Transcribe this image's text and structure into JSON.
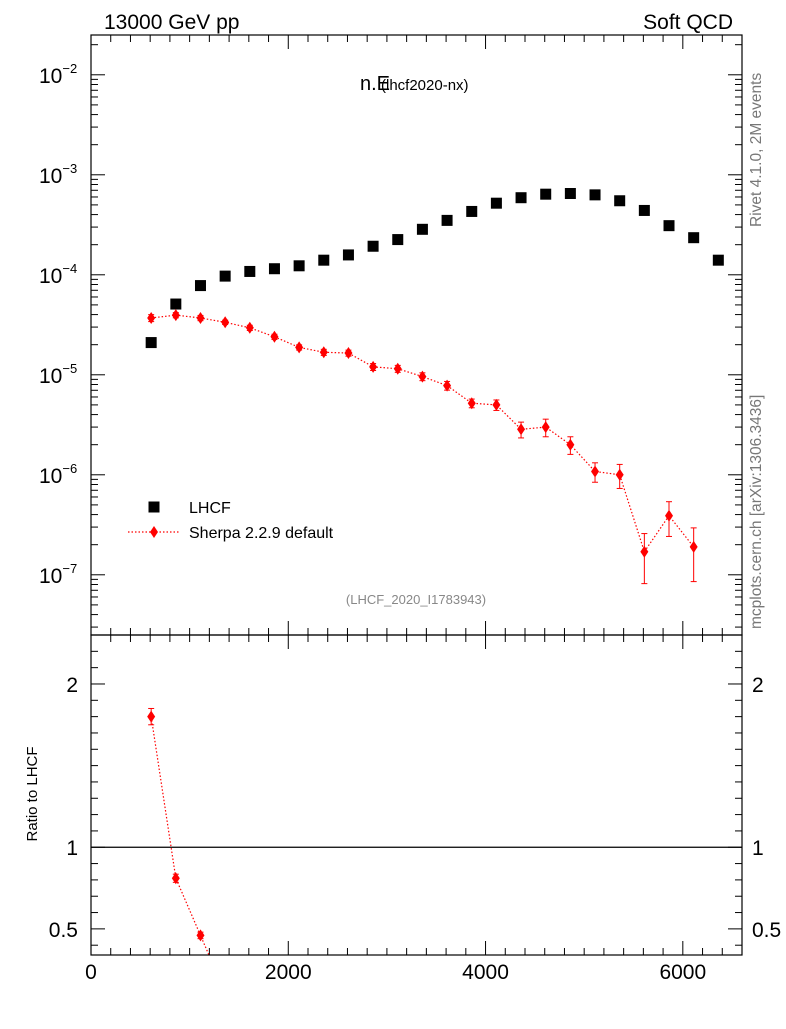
{
  "header": {
    "left": "13000 GeV pp",
    "right": "Soft QCD"
  },
  "side_labels": {
    "top": "Rivet 4.1.0,  2M events",
    "bottom": "mcplots.cern.ch [arXiv:1306.3436]"
  },
  "chart_data": [
    {
      "type": "scatter",
      "yscale": "log",
      "title": "n.E",
      "title_tag": "(lhcf2020-nx)",
      "watermark": "(LHCF_2020_I1783943)",
      "xlabel": "",
      "ylabel": "",
      "xlim": [
        0,
        6600
      ],
      "ylim": [
        2.5e-08,
        0.025
      ],
      "y_ticks": [
        {
          "value": 1e-07,
          "base": "10",
          "exp": "−7"
        },
        {
          "value": 1e-06,
          "base": "10",
          "exp": "−6"
        },
        {
          "value": 1e-05,
          "base": "10",
          "exp": "−5"
        },
        {
          "value": 0.0001,
          "base": "10",
          "exp": "−4"
        },
        {
          "value": 0.001,
          "base": "10",
          "exp": "−3"
        },
        {
          "value": 0.01,
          "base": "10",
          "exp": "−2"
        }
      ],
      "legend": {
        "position": "bottom-left",
        "entries": [
          "LHCF",
          "Sherpa 2.2.9 default"
        ]
      },
      "series": [
        {
          "name": "LHCF",
          "marker": "square",
          "color": "#000000",
          "x": [
            610,
            860,
            1110,
            1360,
            1610,
            1860,
            2110,
            2360,
            2610,
            2860,
            3110,
            3360,
            3610,
            3860,
            4110,
            4360,
            4610,
            4860,
            5110,
            5360,
            5610,
            5860,
            6110,
            6360
          ],
          "y": [
            2.1e-05,
            5.1e-05,
            7.8e-05,
            9.7e-05,
            0.000108,
            0.000115,
            0.000123,
            0.00014,
            0.000158,
            0.000193,
            0.000225,
            0.000285,
            0.00035,
            0.00043,
            0.00052,
            0.00059,
            0.00064,
            0.00065,
            0.00063,
            0.00055,
            0.00044,
            0.00031,
            0.000235,
            0.00014
          ]
        },
        {
          "name": "Sherpa 2.2.9 default",
          "marker": "diamond",
          "line": "dotted",
          "color": "#ff0000",
          "x": [
            610,
            860,
            1110,
            1360,
            1610,
            1860,
            2110,
            2360,
            2610,
            2860,
            3110,
            3360,
            3610,
            3860,
            4110,
            4360,
            4610,
            4860,
            5110,
            5360,
            5610,
            5860,
            6110
          ],
          "y": [
            3.7e-05,
            3.95e-05,
            3.7e-05,
            3.35e-05,
            2.95e-05,
            2.4e-05,
            1.88e-05,
            1.68e-05,
            1.65e-05,
            1.2e-05,
            1.15e-05,
            9.6e-06,
            7.8e-06,
            5.2e-06,
            5e-06,
            2.85e-06,
            3e-06,
            2e-06,
            1.08e-06,
            1e-06,
            1.7e-07,
            3.9e-07,
            1.9e-07
          ],
          "yerr": [
            0.08,
            0.06,
            0.06,
            0.05,
            0.06,
            0.06,
            0.06,
            0.07,
            0.07,
            0.08,
            0.08,
            0.09,
            0.1,
            0.1,
            0.12,
            0.18,
            0.2,
            0.2,
            0.22,
            0.27,
            0.52,
            0.38,
            0.55
          ]
        }
      ]
    },
    {
      "type": "scatter",
      "yscale": "linear",
      "ylabel": "Ratio to LHCF",
      "xlabel": "",
      "xlim": [
        0,
        6600
      ],
      "ylim": [
        0.34,
        2.3
      ],
      "x_ticks": [
        0,
        2000,
        4000,
        6000
      ],
      "y_ticks": [
        0.5,
        1,
        2
      ],
      "reference_line": 1,
      "series": [
        {
          "name": "Sherpa 2.2.9 default / LHCF",
          "marker": "diamond",
          "line": "dotted",
          "color": "#ff0000",
          "x": [
            610,
            860,
            1110
          ],
          "y": [
            1.8,
            0.81,
            0.46
          ],
          "yerr": [
            0.05,
            0.025,
            0.02
          ]
        }
      ]
    }
  ]
}
